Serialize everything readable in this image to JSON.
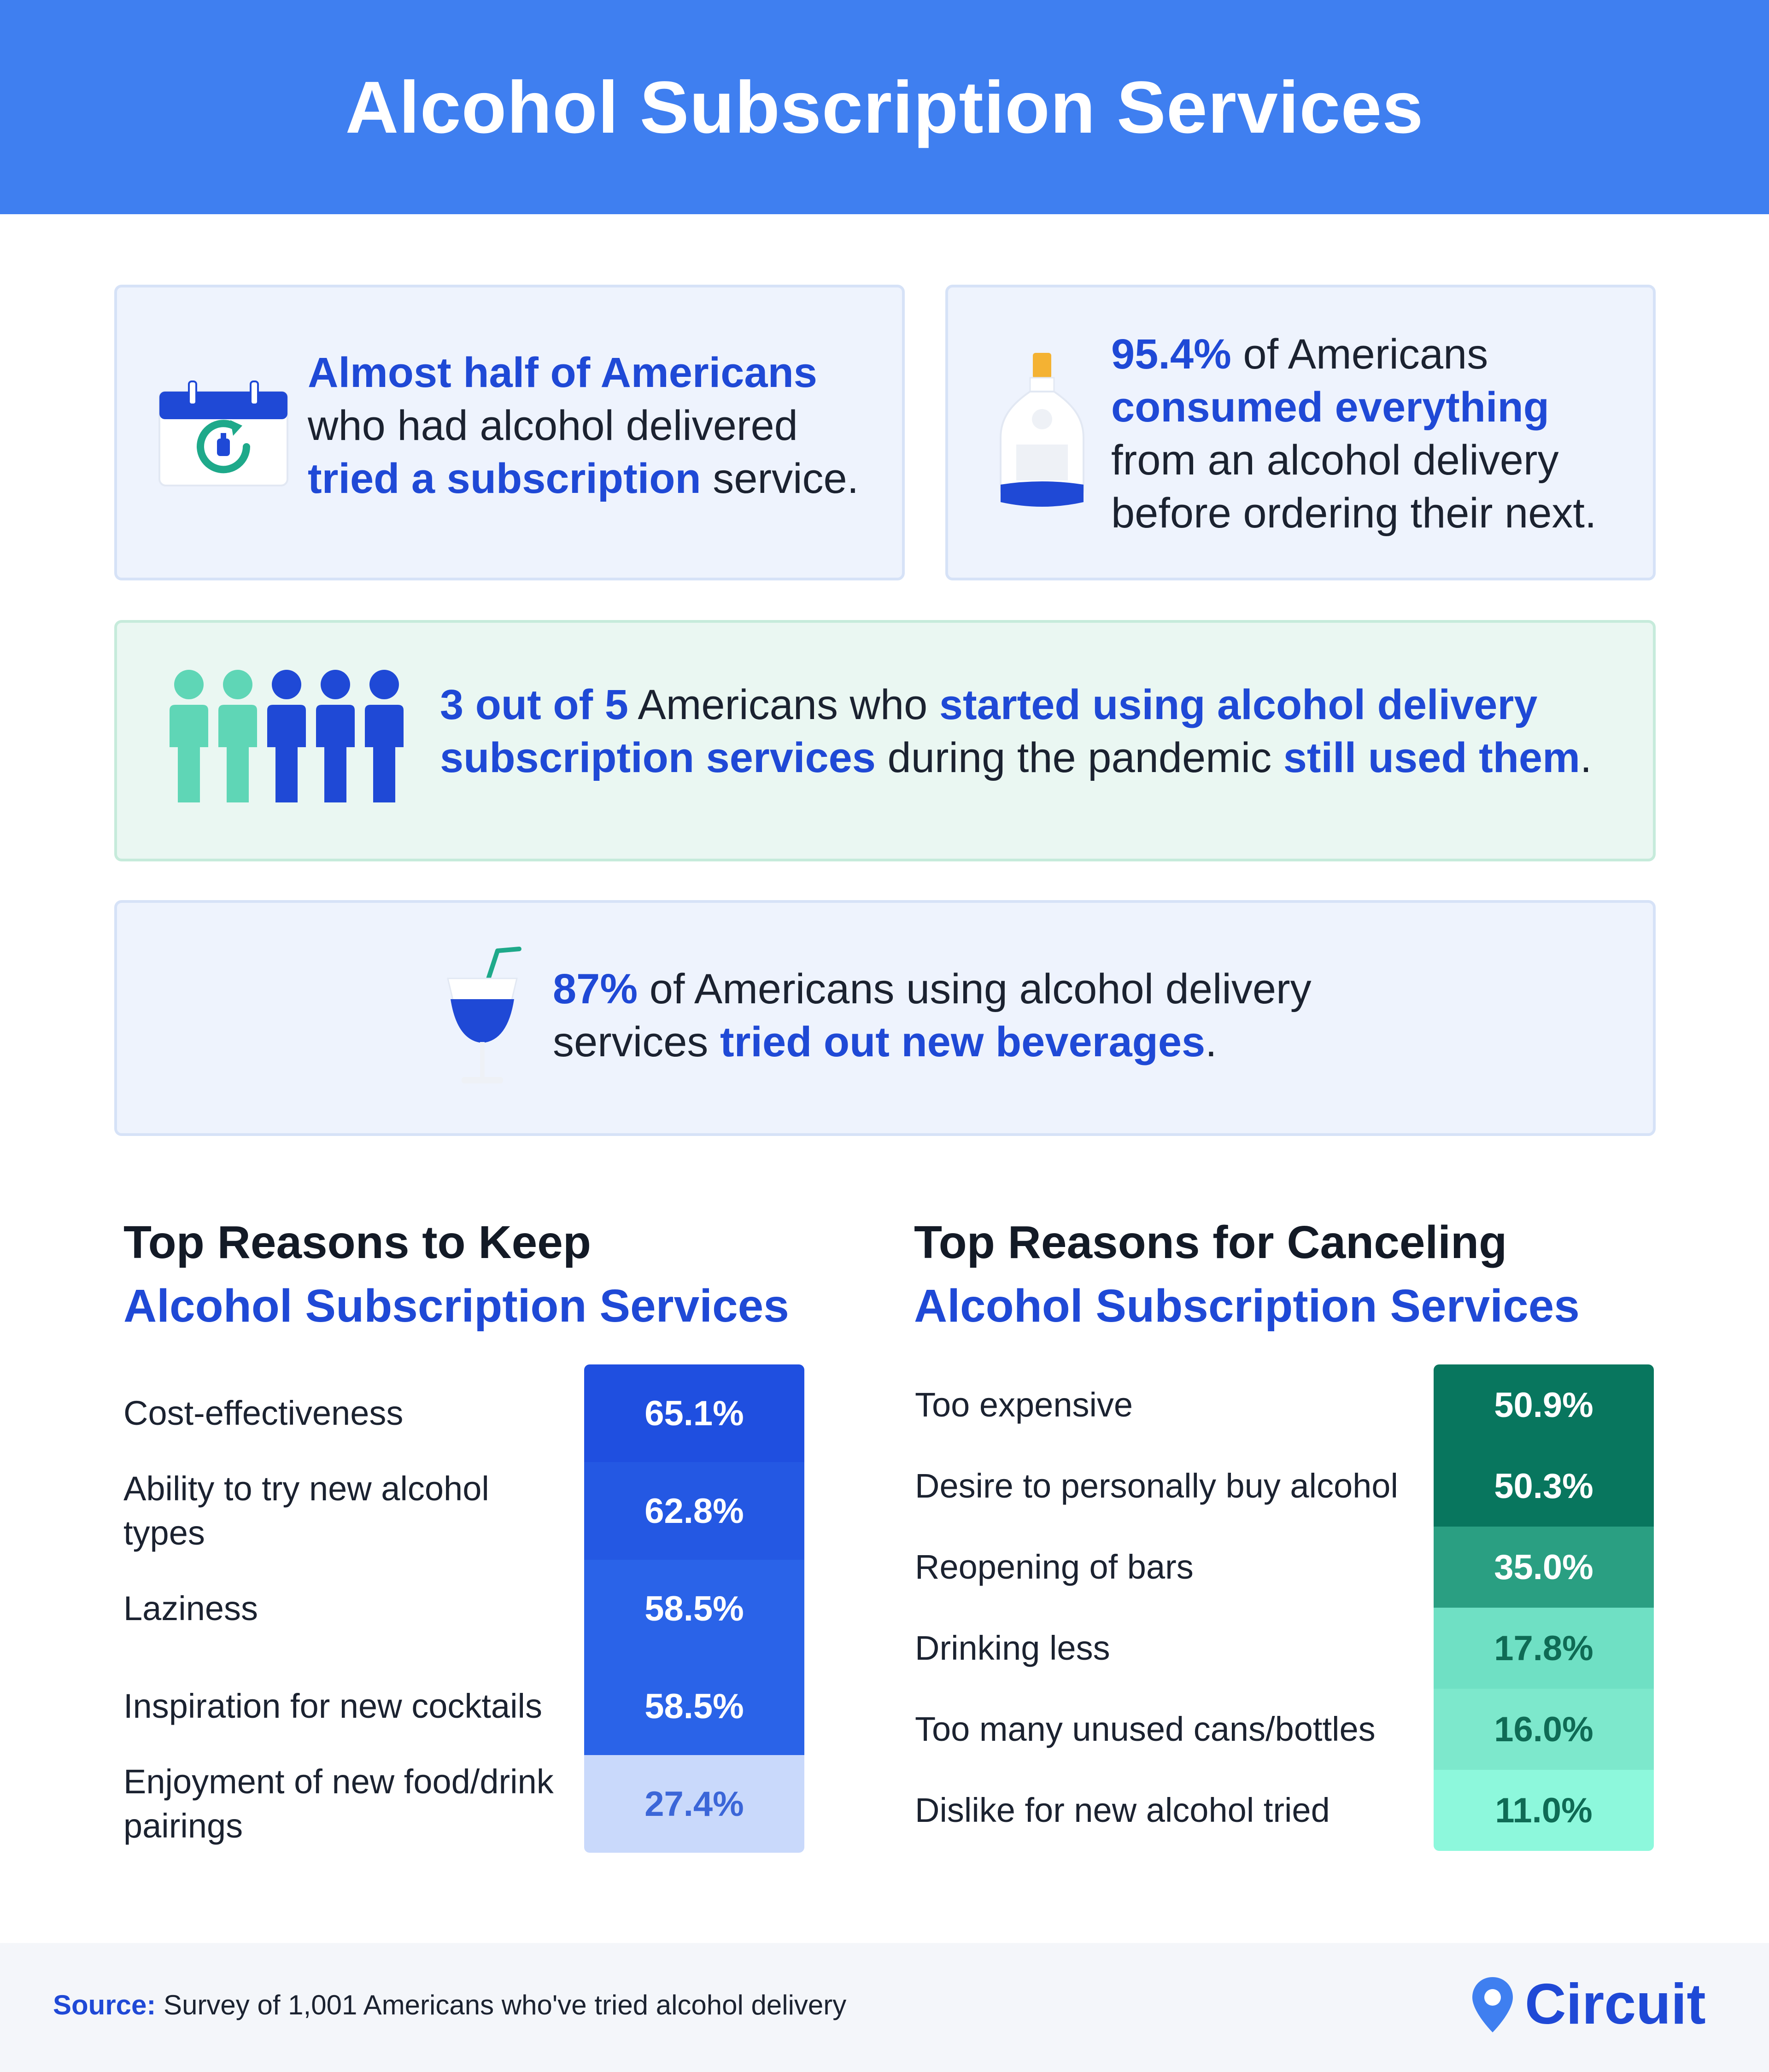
{
  "title": "Alcohol Subscription Services",
  "stats": {
    "card1": {
      "hl1": "Almost half of Americans",
      "t1": " who had alcohol delivered ",
      "hl2": "tried a subscription",
      "t2": " service."
    },
    "card2": {
      "hl1": "95.4%",
      "t1": " of Americans ",
      "hl2": "consumed everything",
      "t2": " from an alcohol delivery before ordering their next."
    },
    "card3": {
      "hl1": "3 out of 5",
      "t1": " Americans who ",
      "hl2": "started using alcohol delivery subscription services",
      "t2": " during the pandemic ",
      "hl3": "still used them",
      "t3": "."
    },
    "card4": {
      "hl1": "87%",
      "t1": " of Americans using alcohol delivery services ",
      "hl2": "tried out new beverages",
      "t2": "."
    }
  },
  "icons": {
    "card1": "calendar-refresh-icon",
    "card2": "bottle-icon",
    "card3": "people-icon",
    "card4": "cocktail-icon"
  },
  "people": {
    "total": 5,
    "highlighted": 3,
    "color_highlighted": "#1f49d6",
    "color_other": "#5fd6b6"
  },
  "colors": {
    "header": "#3f7ff0",
    "accent": "#1f49d6"
  },
  "chart_data": [
    {
      "type": "table",
      "title_line1": "Top Reasons to Keep",
      "title_line2": "Alcohol Subscription Services",
      "categories": [
        "Cost-effectiveness",
        "Ability to try new alcohol types",
        "Laziness",
        "Inspiration for new cocktails",
        "Enjoyment of new food/drink pairings"
      ],
      "values": [
        65.1,
        62.8,
        58.5,
        58.5,
        27.4
      ],
      "value_labels": [
        "65.1%",
        "62.8%",
        "58.5%",
        "58.5%",
        "27.4%"
      ],
      "colors": [
        "#1f4fe0",
        "#2458e3",
        "#2a63e8",
        "#2a63e8",
        "#c9d9fb"
      ],
      "text_colors": [
        "#ffffff",
        "#ffffff",
        "#ffffff",
        "#ffffff",
        "#3b66d8"
      ]
    },
    {
      "type": "table",
      "title_line1": "Top Reasons for Canceling",
      "title_line2": "Alcohol Subscription Services",
      "categories": [
        "Too expensive",
        "Desire to personally buy alcohol",
        "Reopening of bars",
        "Drinking less",
        "Too many unused cans/bottles",
        "Dislike for new alcohol tried"
      ],
      "values": [
        50.9,
        50.3,
        35.0,
        17.8,
        16.0,
        11.0
      ],
      "value_labels": [
        "50.9%",
        "50.3%",
        "35.0%",
        "17.8%",
        "16.0%",
        "11.0%"
      ],
      "colors": [
        "#08765e",
        "#08765e",
        "#2a9f82",
        "#6fe0c4",
        "#7de8cc",
        "#8df8dc"
      ],
      "text_colors": [
        "#ffffff",
        "#ffffff",
        "#ffffff",
        "#0f6b55",
        "#0f6b55",
        "#0f6b55"
      ]
    }
  ],
  "footer": {
    "source_label": "Source:",
    "source_text": " Survey of 1,001 Americans who've tried alcohol delivery",
    "brand": "Circuit",
    "brand_icon": "location-pin-icon"
  }
}
